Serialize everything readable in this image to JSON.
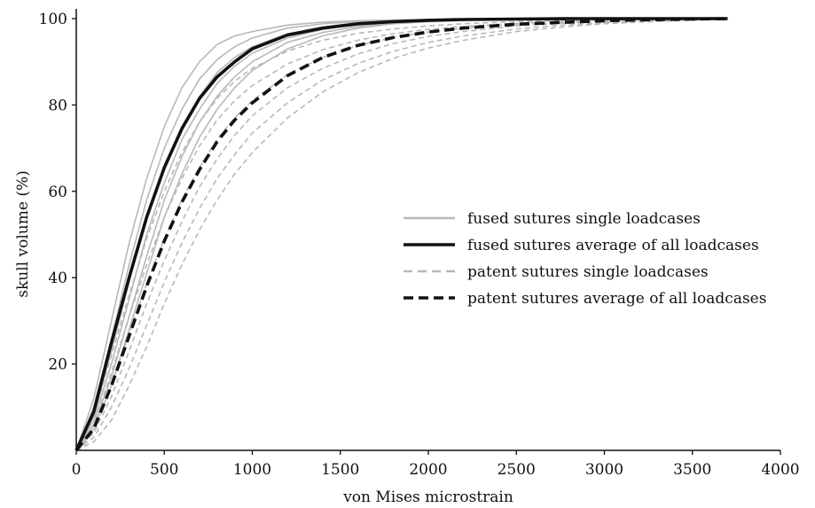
{
  "chart_data": {
    "type": "line",
    "title": "",
    "xlabel": "von Mises microstrain",
    "ylabel": "skull volume (%)",
    "xlim": [
      0,
      4000
    ],
    "ylim": [
      0,
      100
    ],
    "x_ticks": [
      0,
      500,
      1000,
      1500,
      2000,
      2500,
      3000,
      3500,
      4000
    ],
    "y_ticks": [
      20,
      40,
      60,
      80,
      100
    ],
    "grid": false,
    "legend_position": "center-right",
    "legend": [
      {
        "label": "fused sutures single loadcases",
        "color": "#b8b8b8",
        "style": "solid",
        "weight": "thin"
      },
      {
        "label": "fused sutures average of all loadcases",
        "color": "#111111",
        "style": "solid",
        "weight": "thick"
      },
      {
        "label": "patent sutures single loadcases",
        "color": "#b8b8b8",
        "style": "dashed",
        "weight": "thin"
      },
      {
        "label": "patent sutures average of all loadcases",
        "color": "#111111",
        "style": "dashed",
        "weight": "thick"
      }
    ],
    "x": [
      0,
      100,
      200,
      300,
      400,
      500,
      600,
      700,
      800,
      900,
      1000,
      1200,
      1400,
      1600,
      1800,
      2000,
      2200,
      2500,
      2800,
      3000,
      3200,
      3500,
      3700
    ],
    "series": [
      {
        "name": "fused sutures single loadcases",
        "values": [
          0,
          12,
          30,
          48,
          63,
          75,
          84,
          90,
          94,
          96,
          97,
          98.5,
          99.2,
          99.5,
          99.7,
          99.8,
          99.9,
          99.9,
          100,
          100,
          100,
          100,
          100
        ]
      },
      {
        "name": "fused sutures single loadcases",
        "values": [
          0,
          10,
          26,
          43,
          58,
          70,
          79,
          86,
          90.5,
          93.5,
          95.5,
          97.8,
          98.8,
          99.3,
          99.6,
          99.8,
          99.9,
          99.9,
          100,
          100,
          100,
          100,
          100
        ]
      },
      {
        "name": "fused sutures single loadcases",
        "values": [
          0,
          8,
          23,
          39,
          54,
          66,
          75,
          82,
          87.5,
          91,
          93.5,
          96.5,
          98,
          98.9,
          99.4,
          99.6,
          99.8,
          99.9,
          100,
          100,
          100,
          100,
          100
        ]
      },
      {
        "name": "fused sutures single loadcases",
        "values": [
          0,
          7,
          20,
          35,
          50,
          62,
          72,
          79,
          85,
          89,
          92,
          95.5,
          97.5,
          98.6,
          99.2,
          99.5,
          99.7,
          99.9,
          100,
          100,
          100,
          100,
          100
        ]
      },
      {
        "name": "fused sutures single loadcases",
        "values": [
          0,
          6,
          17,
          31,
          45,
          58,
          68,
          76,
          82,
          86.5,
          90,
          94.5,
          96.8,
          98.2,
          99,
          99.4,
          99.6,
          99.8,
          99.9,
          100,
          100,
          100,
          100
        ]
      },
      {
        "name": "fused sutures single loadcases",
        "values": [
          0,
          5,
          15,
          28,
          41,
          54,
          64,
          72.5,
          79,
          84,
          88,
          93,
          96,
          97.8,
          98.8,
          99.3,
          99.6,
          99.8,
          99.9,
          100,
          100,
          100,
          100
        ]
      },
      {
        "name": "fused sutures average of all loadcases",
        "values": [
          0,
          9,
          25,
          40,
          54,
          65.5,
          74.5,
          81.5,
          86.5,
          90,
          93,
          96.2,
          97.8,
          98.8,
          99.3,
          99.6,
          99.8,
          99.9,
          100,
          100,
          100,
          100,
          100
        ]
      },
      {
        "name": "patent sutures single loadcases",
        "values": [
          0,
          8,
          22,
          36,
          49,
          60,
          69,
          76,
          81.5,
          85.5,
          88.5,
          92.5,
          95,
          96.6,
          97.6,
          98.3,
          98.8,
          99.3,
          99.6,
          99.8,
          99.9,
          100,
          100
        ]
      },
      {
        "name": "patent sutures single loadcases",
        "values": [
          0,
          6,
          18,
          31,
          43,
          54,
          63,
          70.5,
          76.5,
          81,
          84.5,
          89.5,
          92.8,
          95,
          96.5,
          97.5,
          98.2,
          98.9,
          99.4,
          99.6,
          99.8,
          99.9,
          100
        ]
      },
      {
        "name": "patent sutures single loadcases",
        "values": [
          0,
          5,
          15,
          27,
          38.5,
          49,
          58,
          65.5,
          72,
          77,
          81,
          87,
          91,
          93.8,
          95.6,
          96.9,
          97.8,
          98.7,
          99.2,
          99.5,
          99.7,
          99.9,
          100
        ]
      },
      {
        "name": "patent sutures single loadcases",
        "values": [
          0,
          4,
          12.5,
          23,
          34,
          44,
          53,
          61,
          67.5,
          73,
          77.5,
          84,
          88.5,
          91.8,
          94.2,
          95.9,
          97,
          98.3,
          99,
          99.3,
          99.6,
          99.8,
          100
        ]
      },
      {
        "name": "patent sutures single loadcases",
        "values": [
          0,
          3,
          10,
          19,
          29,
          39,
          48,
          56,
          63,
          68.5,
          73.5,
          80.5,
          85.8,
          89.6,
          92.4,
          94.5,
          96,
          97.6,
          98.6,
          99,
          99.4,
          99.7,
          100
        ]
      },
      {
        "name": "patent sutures single loadcases",
        "values": [
          0,
          2,
          7,
          15,
          24,
          34,
          43,
          51,
          58,
          64,
          69,
          77,
          83,
          87.5,
          90.8,
          93.2,
          95,
          97,
          98.2,
          98.8,
          99.2,
          99.6,
          100
        ]
      },
      {
        "name": "patent sutures average of all loadcases",
        "values": [
          0,
          5,
          15,
          26.5,
          38,
          48.5,
          57.5,
          65,
          71.5,
          76.5,
          80.5,
          86.8,
          91,
          93.8,
          95.6,
          96.9,
          97.8,
          98.7,
          99.2,
          99.5,
          99.7,
          99.9,
          100
        ]
      }
    ]
  }
}
